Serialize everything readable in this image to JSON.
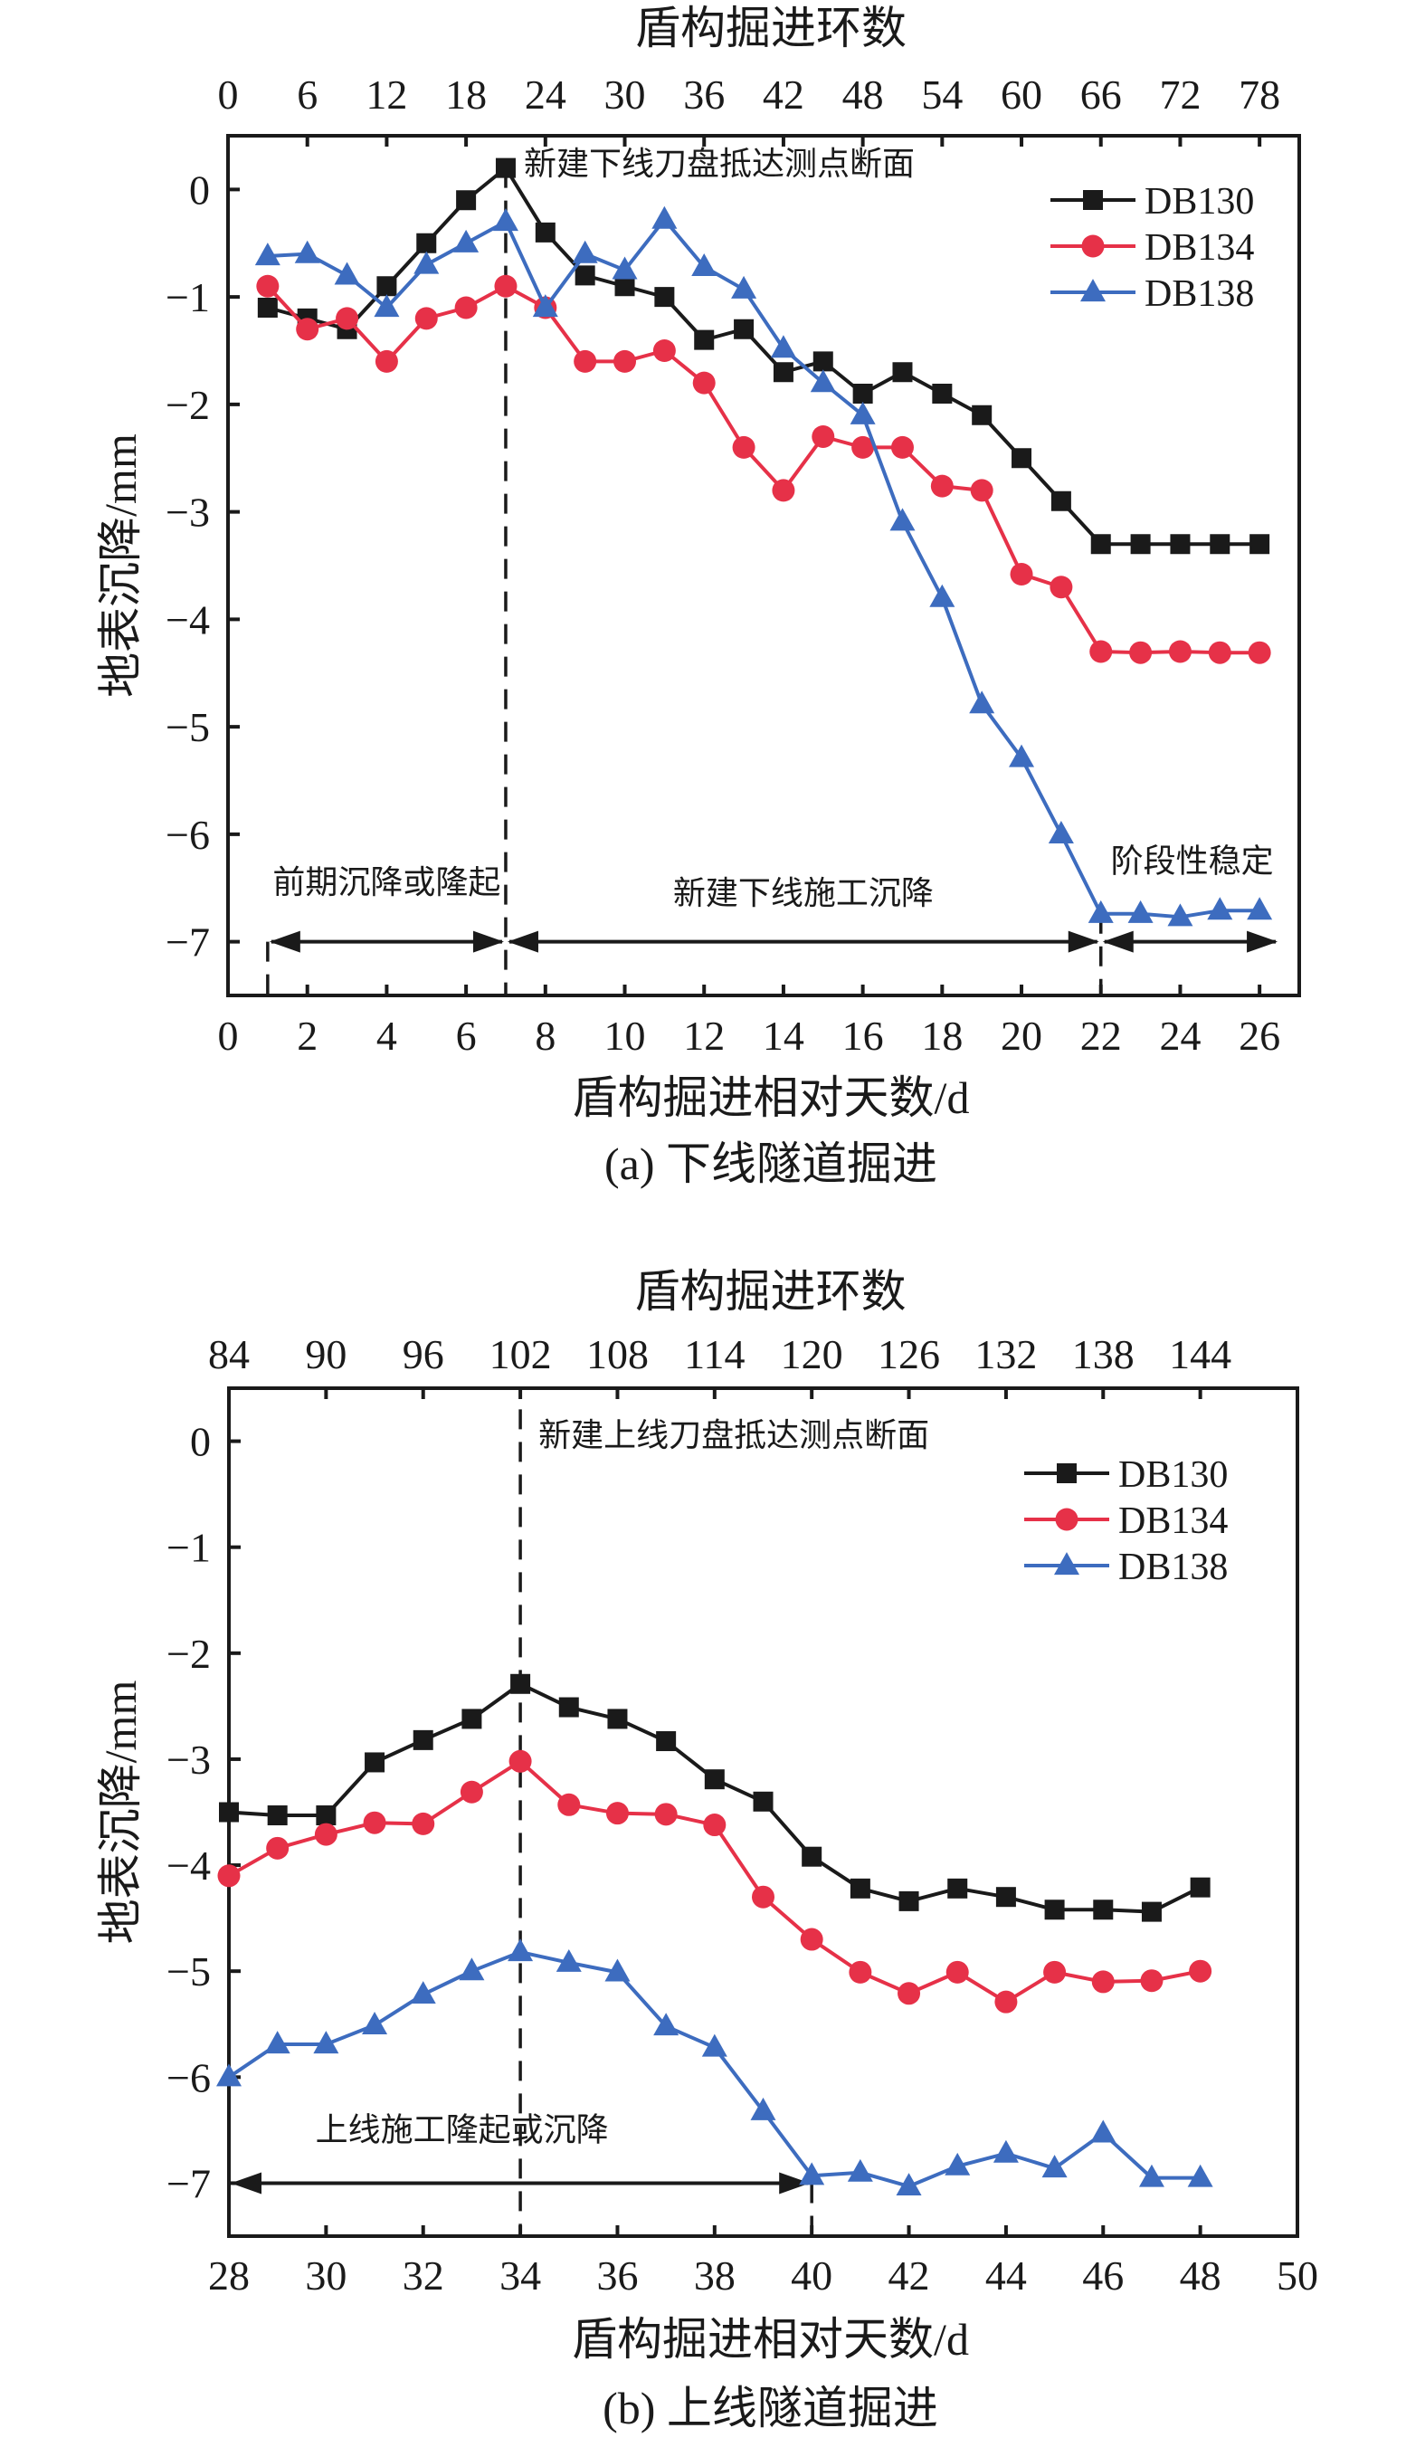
{
  "chart_data": [
    {
      "id": "a",
      "type": "line",
      "caption": "(a) 下线隧道掘进",
      "xlabel": "盾构掘进相对天数/d",
      "ylabel": "地表沉降/mm",
      "top_xlabel": "盾构掘进环数",
      "xlim": [
        0,
        27
      ],
      "ylim": [
        -7.5,
        0.5
      ],
      "x_ticks": [
        0,
        2,
        4,
        6,
        8,
        10,
        12,
        14,
        16,
        18,
        20,
        22,
        24,
        26
      ],
      "x_tick_labels": [
        "0",
        "2",
        "4",
        "6",
        "8",
        "10",
        "12",
        "14",
        "16",
        "18",
        "20",
        "22",
        "24",
        "26"
      ],
      "y_ticks": [
        0,
        -1,
        -2,
        -3,
        -4,
        -5,
        -6,
        -7
      ],
      "y_tick_labels": [
        "0",
        "−1",
        "−2",
        "−3",
        "−4",
        "−5",
        "−6",
        "−7"
      ],
      "top_ticks_day": [
        0,
        2,
        4,
        6,
        8,
        10,
        12,
        14,
        16,
        18,
        20,
        22,
        24,
        26
      ],
      "top_tick_labels": [
        "0",
        "6",
        "12",
        "18",
        "24",
        "30",
        "36",
        "42",
        "48",
        "54",
        "60",
        "66",
        "72",
        "78"
      ],
      "grid": false,
      "legend_position": "top-right",
      "x": [
        1,
        2,
        3,
        4,
        5,
        6,
        7,
        8,
        9,
        10,
        11,
        12,
        13,
        14,
        15,
        16,
        17,
        18,
        19,
        20,
        21,
        22,
        23,
        24,
        25,
        26
      ],
      "series": [
        {
          "name": "DB130",
          "marker": "square",
          "color": "#1a1a1a",
          "values": [
            -1.1,
            -1.2,
            -1.3,
            -0.9,
            -0.5,
            -0.1,
            0.2,
            -0.4,
            -0.8,
            -0.9,
            -1.0,
            -1.4,
            -1.3,
            -1.7,
            -1.6,
            -1.9,
            -1.7,
            -1.9,
            -2.1,
            -2.5,
            -2.9,
            -3.3,
            -3.3,
            -3.3,
            -3.3,
            -3.3
          ]
        },
        {
          "name": "DB134",
          "marker": "circle",
          "color": "#e63148",
          "values": [
            -0.9,
            -1.3,
            -1.2,
            -1.6,
            -1.2,
            -1.1,
            -0.9,
            -1.1,
            -1.6,
            -1.6,
            -1.5,
            -1.8,
            -2.4,
            -2.8,
            -2.3,
            -2.4,
            -2.4,
            -2.76,
            -2.8,
            -3.58,
            -3.7,
            -4.3,
            -4.31,
            -4.3,
            -4.31,
            -4.31
          ]
        },
        {
          "name": "DB138",
          "marker": "triangle",
          "color": "#3d6cbf",
          "values": [
            -0.62,
            -0.6,
            -0.8,
            -1.1,
            -0.7,
            -0.5,
            -0.3,
            -1.1,
            -0.6,
            -0.75,
            -0.28,
            -0.72,
            -0.93,
            -1.48,
            -1.8,
            -2.1,
            -3.09,
            -3.8,
            -4.79,
            -5.29,
            -6.0,
            -6.74,
            -6.74,
            -6.77,
            -6.71,
            -6.71
          ]
        }
      ],
      "vlines": [
        {
          "x": 7,
          "from_y": 0.2,
          "label": "新建下线刀盘抵达测点断面"
        },
        {
          "x": 1,
          "from_y": -7.0,
          "to_y": -7.5
        },
        {
          "x": 22,
          "from_y": -6.74,
          "to_y": -7.5
        }
      ],
      "arrows": [
        {
          "from": 1,
          "to": 7,
          "y": -7.0,
          "label": "前期沉降或隆起",
          "label_x": 4,
          "label_y": -6.55
        },
        {
          "from": 7,
          "to": 22,
          "y": -7.0,
          "label": "新建下线施工沉降",
          "label_x": 14.5,
          "label_y": -6.65
        },
        {
          "from": 22,
          "to": 26.5,
          "y": -7.0,
          "label": "阶段性稳定",
          "label_x": 24.3,
          "label_y": -6.35
        }
      ]
    },
    {
      "id": "b",
      "type": "line",
      "caption": "(b) 上线隧道掘进",
      "xlabel": "盾构掘进相对天数/d",
      "ylabel": "地表沉降/mm",
      "top_xlabel": "盾构掘进环数",
      "xlim": [
        28,
        50
      ],
      "ylim": [
        -7.5,
        0.5
      ],
      "x_ticks": [
        28,
        30,
        32,
        34,
        36,
        38,
        40,
        42,
        44,
        46,
        48,
        50
      ],
      "x_tick_labels": [
        "28",
        "30",
        "32",
        "34",
        "36",
        "38",
        "40",
        "42",
        "44",
        "46",
        "48",
        "50"
      ],
      "y_ticks": [
        0,
        -1,
        -2,
        -3,
        -4,
        -5,
        -6,
        -7
      ],
      "y_tick_labels": [
        "0",
        "−1",
        "−2",
        "−3",
        "−4",
        "−5",
        "−6",
        "−7"
      ],
      "top_ticks_day": [
        28,
        30,
        32,
        34,
        36,
        38,
        40,
        42,
        44,
        46,
        48
      ],
      "top_tick_labels": [
        "84",
        "90",
        "96",
        "102",
        "108",
        "114",
        "120",
        "126",
        "132",
        "138",
        "144"
      ],
      "grid": false,
      "legend_position": "top-right",
      "x": [
        28,
        29,
        30,
        31,
        32,
        33,
        34,
        35,
        36,
        37,
        38,
        39,
        40,
        41,
        42,
        43,
        44,
        45,
        46,
        47,
        48
      ],
      "series": [
        {
          "name": "DB130",
          "marker": "square",
          "color": "#1a1a1a",
          "values": [
            -3.5,
            -3.53,
            -3.53,
            -3.03,
            -2.82,
            -2.62,
            -2.29,
            -2.51,
            -2.62,
            -2.83,
            -3.19,
            -3.4,
            -3.92,
            -4.22,
            -4.34,
            -4.22,
            -4.3,
            -4.42,
            -4.42,
            -4.44,
            -4.21
          ]
        },
        {
          "name": "DB134",
          "marker": "circle",
          "color": "#e63148",
          "values": [
            -4.1,
            -3.84,
            -3.71,
            -3.6,
            -3.61,
            -3.31,
            -3.02,
            -3.43,
            -3.51,
            -3.52,
            -3.62,
            -4.3,
            -4.7,
            -5.01,
            -5.21,
            -5.01,
            -5.29,
            -5.01,
            -5.1,
            -5.09,
            -5.0
          ]
        },
        {
          "name": "DB138",
          "marker": "triangle",
          "color": "#3d6cbf",
          "values": [
            -6.0,
            -5.69,
            -5.69,
            -5.51,
            -5.22,
            -5.0,
            -4.82,
            -4.92,
            -5.01,
            -5.52,
            -5.72,
            -6.32,
            -6.93,
            -6.9,
            -7.03,
            -6.84,
            -6.72,
            -6.86,
            -6.53,
            -6.95,
            -6.95
          ]
        }
      ],
      "vlines": [
        {
          "x": 34,
          "from_y": 0.3,
          "label": "新建上线刀盘抵达测点断面"
        },
        {
          "x": 40,
          "from_y": -7.0,
          "to_y": -7.5
        }
      ],
      "arrows": [
        {
          "from": 28,
          "to": 40,
          "y": -7.0,
          "label": "上线施工隆起或沉降",
          "label_x": 32.8,
          "label_y": -6.6
        }
      ]
    }
  ]
}
